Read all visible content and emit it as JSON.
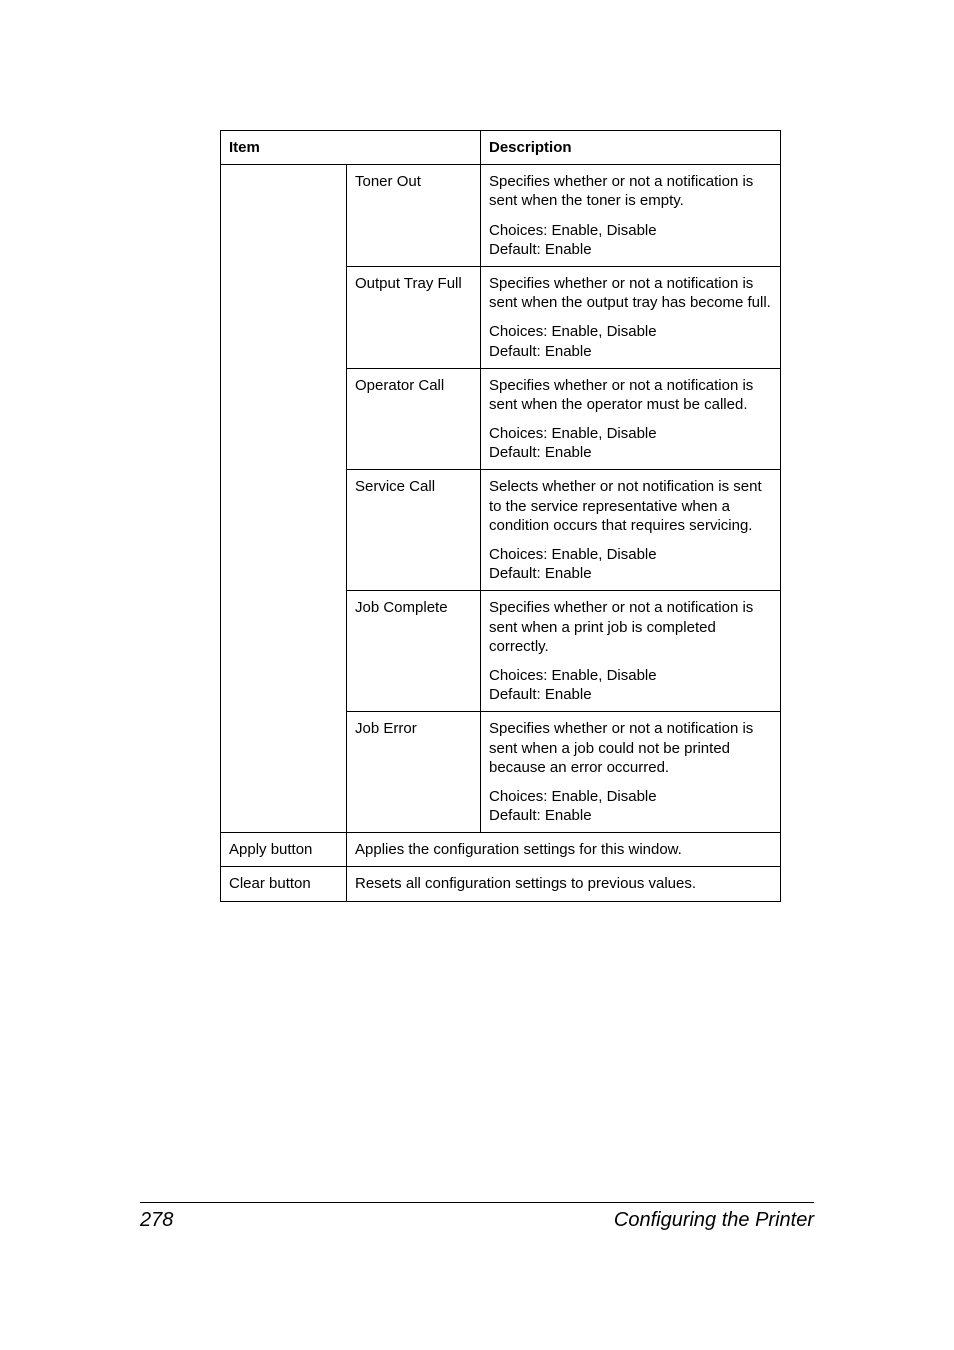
{
  "table": {
    "header": {
      "item": "Item",
      "description": "Description"
    },
    "rows": [
      {
        "sub": "Toner Out",
        "desc1": "Specifies whether or not a notification is sent when the toner is empty.",
        "desc2": "Choices: Enable, Disable\nDefault:   Enable"
      },
      {
        "sub": "Output Tray Full",
        "desc1": "Specifies whether or not a notification is sent when the output tray has become full.",
        "desc2": "Choices: Enable, Disable\nDefault: Enable"
      },
      {
        "sub": "Operator Call",
        "desc1": "Specifies whether or not a notification is sent when the operator must be called.",
        "desc2": "Choices: Enable, Disable\nDefault:   Enable"
      },
      {
        "sub": "Service Call",
        "desc1": "Selects whether or not notification is sent to the service representative when a condition occurs that requires servicing.",
        "desc2": "Choices: Enable, Disable\nDefault:   Enable"
      },
      {
        "sub": "Job Complete",
        "desc1": "Specifies whether or not a notification is sent when a print job is completed correctly.",
        "desc2": "Choices: Enable, Disable\nDefault:   Enable"
      },
      {
        "sub": "Job Error",
        "desc1": "Specifies whether or not a notification is sent when a job could not be printed because an error occurred.",
        "desc2": "Choices: Enable, Disable\nDefault:   Enable"
      }
    ],
    "apply": {
      "label": "Apply button",
      "desc": "Applies the configuration settings for this window."
    },
    "clear": {
      "label": "Clear button",
      "desc": "Resets all configuration settings to previous values."
    }
  },
  "footer": {
    "page": "278",
    "title": "Configuring the Printer"
  }
}
